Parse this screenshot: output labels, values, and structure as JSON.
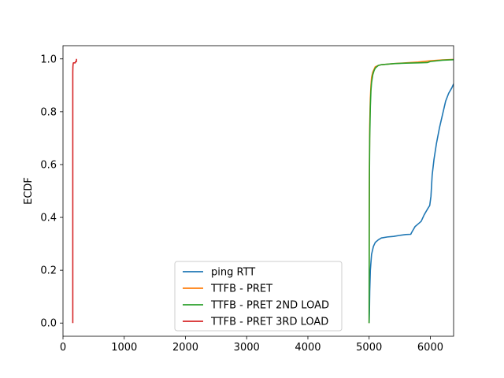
{
  "chart_data": {
    "type": "line",
    "title": "",
    "xlabel": "",
    "ylabel": "ECDF",
    "xlim": [
      0,
      6380
    ],
    "ylim": [
      -0.05,
      1.05
    ],
    "xticks": [
      0,
      1000,
      2000,
      3000,
      4000,
      5000,
      6000
    ],
    "yticks": [
      0.0,
      0.2,
      0.4,
      0.6,
      0.8,
      1.0
    ],
    "xtick_labels": [
      "0",
      "1000",
      "2000",
      "3000",
      "4000",
      "5000",
      "6000"
    ],
    "ytick_labels": [
      "0.0",
      "0.2",
      "0.4",
      "0.6",
      "0.8",
      "1.0"
    ],
    "grid": false,
    "legend_position": "lower-center",
    "series": [
      {
        "name": "ping RTT",
        "color": "#1f77b4",
        "x": [
          5000,
          5005,
          5010,
          5020,
          5040,
          5070,
          5100,
          5150,
          5200,
          5300,
          5400,
          5500,
          5600,
          5680,
          5700,
          5750,
          5800,
          5850,
          5900,
          5950,
          5990,
          6010,
          6030,
          6060,
          6100,
          6150,
          6200,
          6250,
          6300,
          6350,
          6380
        ],
        "y": [
          0.0,
          0.04,
          0.12,
          0.2,
          0.26,
          0.29,
          0.305,
          0.315,
          0.322,
          0.326,
          0.328,
          0.332,
          0.335,
          0.336,
          0.345,
          0.365,
          0.375,
          0.385,
          0.41,
          0.43,
          0.445,
          0.48,
          0.56,
          0.62,
          0.68,
          0.74,
          0.79,
          0.84,
          0.87,
          0.89,
          0.905
        ]
      },
      {
        "name": "TTFB - PRET",
        "color": "#ff7f0e",
        "x": [
          5000,
          5002,
          5005,
          5010,
          5020,
          5030,
          5040,
          5060,
          5080,
          5100,
          5150,
          5200,
          5400,
          5600,
          5800,
          6000,
          6200,
          6380
        ],
        "y": [
          0.0,
          0.4,
          0.6,
          0.75,
          0.85,
          0.9,
          0.93,
          0.95,
          0.96,
          0.97,
          0.975,
          0.978,
          0.982,
          0.985,
          0.988,
          0.993,
          0.996,
          0.998
        ]
      },
      {
        "name": "TTFB - PRET 2ND LOAD",
        "color": "#2ca02c",
        "x": [
          5000,
          5002,
          5005,
          5010,
          5020,
          5030,
          5040,
          5060,
          5080,
          5100,
          5150,
          5200,
          5400,
          5600,
          5800,
          5950,
          6000,
          6200,
          6380
        ],
        "y": [
          0.0,
          0.35,
          0.55,
          0.7,
          0.82,
          0.88,
          0.91,
          0.94,
          0.955,
          0.965,
          0.975,
          0.978,
          0.982,
          0.984,
          0.985,
          0.986,
          0.99,
          0.995,
          0.997
        ]
      },
      {
        "name": "TTFB - PRET 3RD LOAD",
        "color": "#d62728",
        "x": [
          160,
          160,
          162,
          165,
          170,
          180,
          200,
          205,
          210,
          215,
          220,
          220
        ],
        "y": [
          0.0,
          0.95,
          0.97,
          0.98,
          0.985,
          0.985,
          0.985,
          0.99,
          0.99,
          0.99,
          0.99,
          1.0
        ]
      }
    ]
  }
}
